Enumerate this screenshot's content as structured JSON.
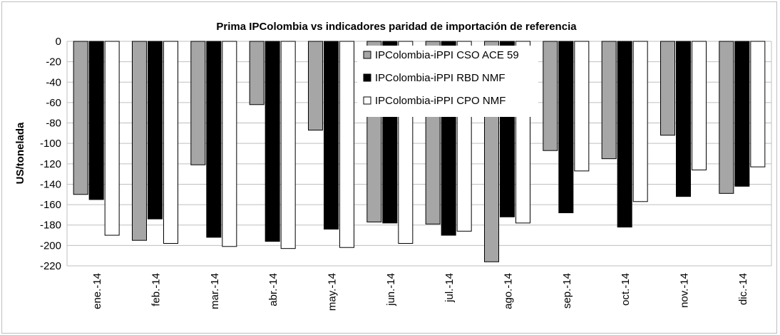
{
  "chart_data": {
    "type": "bar",
    "title": "Prima IPColombia vs indicadores paridad de importación de referencia",
    "ylabel": "US/tonelada",
    "xlabel": "",
    "ylim": [
      -220,
      0
    ],
    "yticks": [
      0,
      -20,
      -40,
      -60,
      -80,
      -100,
      -120,
      -140,
      -160,
      -180,
      -200,
      -220
    ],
    "grid": true,
    "legend_position": "top-center",
    "categories": [
      "ene.-14",
      "feb.-14",
      "mar.-14",
      "abr.-14",
      "may.-14",
      "jun.-14",
      "jul.-14",
      "ago.-14",
      "sep.-14",
      "oct.-14",
      "nov.-14",
      "dic.-14"
    ],
    "series": [
      {
        "name": "IPColombia-iPPI CSO ACE 59",
        "color": "#a6a6a6",
        "values": [
          -150,
          -195,
          -121,
          -62,
          -87,
          -177,
          -179,
          -216,
          -107,
          -115,
          -92,
          -149
        ]
      },
      {
        "name": "IPColombia-iPPI RBD NMF",
        "color": "#000000",
        "values": [
          -155,
          -174,
          -192,
          -196,
          -184,
          -178,
          -190,
          -172,
          -168,
          -182,
          -152,
          -142
        ]
      },
      {
        "name": "IPColombia-iPPI CPO NMF",
        "color": "#ffffff",
        "values": [
          -190,
          -198,
          -201,
          -203,
          -202,
          -198,
          -186,
          -178,
          -127,
          -157,
          -126,
          -123
        ]
      }
    ]
  }
}
